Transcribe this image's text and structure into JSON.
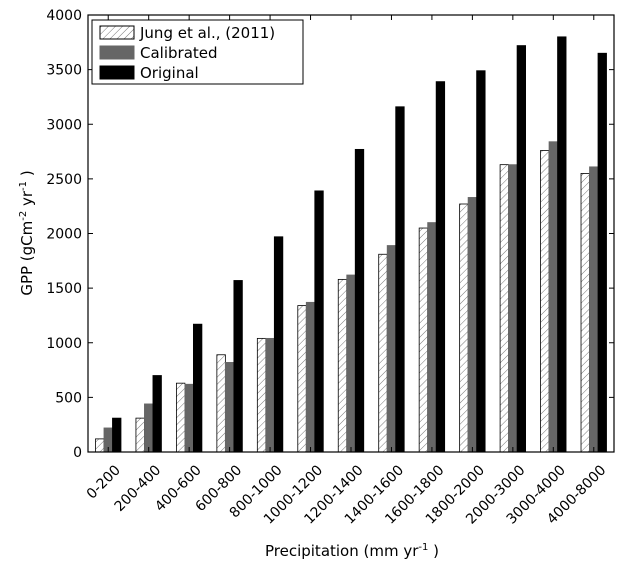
{
  "chart_data": {
    "type": "bar",
    "title": "",
    "xlabel": "Precipitation (mm yr",
    "xlabel_sup": "-1",
    "xlabel_suffix": " )",
    "ylabel_pre": "GPP (gCm",
    "ylabel_sup1": "-2",
    "ylabel_mid": " yr",
    "ylabel_sup2": "-1",
    "ylabel_post": " )",
    "ylim": [
      0,
      4000
    ],
    "yticks": [
      "0",
      "500",
      "1000",
      "1500",
      "2000",
      "2500",
      "3000",
      "3500",
      "4000"
    ],
    "categories": [
      "0-200",
      "200-400",
      "400-600",
      "600-800",
      "800-1000",
      "1000-1200",
      "1200-1400",
      "1400-1600",
      "1600-1800",
      "1800-2000",
      "2000-3000",
      "3000-4000",
      "4000-8000"
    ],
    "legend_position": "top-left",
    "grid": false,
    "series": [
      {
        "name": "Jung et al., (2011)",
        "pattern": "hatched",
        "color": "#ffffff",
        "values": [
          120,
          310,
          630,
          890,
          1040,
          1340,
          1580,
          1810,
          2050,
          2270,
          2630,
          2760,
          2550
        ]
      },
      {
        "name": "Calibrated",
        "pattern": "solid",
        "color": "#666666",
        "values": [
          220,
          440,
          620,
          820,
          1040,
          1370,
          1620,
          1890,
          2100,
          2330,
          2630,
          2840,
          2610
        ]
      },
      {
        "name": "Original",
        "pattern": "solid",
        "color": "#000000",
        "values": [
          310,
          700,
          1170,
          1570,
          1970,
          2390,
          2770,
          3160,
          3390,
          3490,
          3720,
          3800,
          3650
        ]
      }
    ]
  }
}
